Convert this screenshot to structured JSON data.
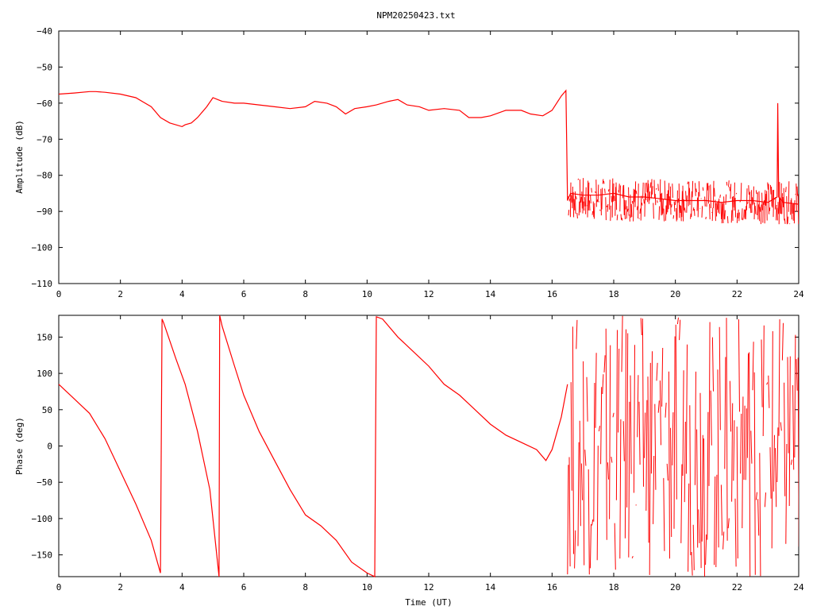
{
  "title": "NPM20250423.txt",
  "colors": {
    "series": "#ff0000",
    "axes": "#000000",
    "background": "#ffffff"
  },
  "chart_data": [
    {
      "type": "line",
      "title": "NPM20250423.txt",
      "xlabel": "",
      "ylabel": "Amplitude (dB)",
      "xlim": [
        0,
        24
      ],
      "ylim": [
        -110,
        -40
      ],
      "xticks": [
        "0",
        "2",
        "4",
        "6",
        "8",
        "10",
        "12",
        "14",
        "16",
        "18",
        "20",
        "22",
        "24"
      ],
      "yticks": [
        "-40",
        "-50",
        "-60",
        "-70",
        "-80",
        "-90",
        "-100",
        "-110"
      ],
      "grid": false,
      "series": [
        {
          "x": [
            0,
            0.5,
            1,
            1.2,
            1.5,
            2,
            2.5,
            3,
            3.3,
            3.6,
            4,
            4.1,
            4.3,
            4.5,
            4.8,
            5,
            5.3,
            5.7,
            6,
            6.5,
            7,
            7.5,
            8,
            8.3,
            8.7,
            9,
            9.3,
            9.6,
            10,
            10.3,
            10.7,
            11,
            11.3,
            11.7,
            12,
            12.5,
            13,
            13.3,
            13.7,
            14,
            14.5,
            15,
            15.3,
            15.7,
            16,
            16.3,
            16.45,
            16.5,
            16.6,
            17,
            17.5,
            18,
            18.5,
            19,
            19.5,
            20,
            20.5,
            21,
            21.5,
            22,
            22.5,
            23,
            23.3,
            23.32,
            23.35,
            23.5,
            24
          ],
          "y": [
            -57.5,
            -57.2,
            -56.8,
            -56.8,
            -57,
            -57.5,
            -58.5,
            -61,
            -64,
            -65.5,
            -66.5,
            -66,
            -65.5,
            -64,
            -61,
            -58.5,
            -59.5,
            -60,
            -60,
            -60.5,
            -61,
            -61.5,
            -61,
            -59.5,
            -60,
            -61,
            -63,
            -61.5,
            -61,
            -60.5,
            -59.5,
            -59,
            -60.5,
            -61,
            -62,
            -61.5,
            -62,
            -64,
            -64,
            -63.5,
            -62,
            -62,
            -63,
            -63.5,
            -62,
            -58,
            -56.5,
            -87,
            -85,
            -85.5,
            -85.5,
            -85,
            -86,
            -86,
            -86.5,
            -87,
            -87,
            -87,
            -87.5,
            -87,
            -87,
            -87.5,
            -86,
            -60,
            -86,
            -87.5,
            -88
          ]
        }
      ]
    },
    {
      "type": "line",
      "title": "",
      "xlabel": "Time (UT)",
      "ylabel": "Phase (deg)",
      "xlim": [
        0,
        24
      ],
      "ylim": [
        -180,
        180
      ],
      "xticks": [
        "0",
        "2",
        "4",
        "6",
        "8",
        "10",
        "12",
        "14",
        "16",
        "18",
        "20",
        "22",
        "24"
      ],
      "yticks": [
        "150",
        "100",
        "50",
        "0",
        "-50",
        "-100",
        "-150"
      ],
      "grid": false,
      "series": [
        {
          "x": [
            0,
            0.5,
            1,
            1.5,
            2,
            2.5,
            3,
            3.3,
            3.35,
            3.4,
            3.8,
            4.1,
            4.5,
            4.9,
            5.2,
            5.22,
            5.3,
            5.7,
            6,
            6.5,
            7,
            7.5,
            8,
            8.5,
            9,
            9.5,
            10,
            10.25,
            10.3,
            10.5,
            11,
            11.5,
            12,
            12.5,
            13,
            13.5,
            14,
            14.5,
            15,
            15.5,
            15.8,
            16,
            16.3,
            16.5
          ],
          "y": [
            85,
            65,
            45,
            10,
            -35,
            -80,
            -130,
            -175,
            175,
            170,
            120,
            85,
            20,
            -60,
            -180,
            180,
            165,
            110,
            70,
            20,
            -20,
            -60,
            -95,
            -110,
            -130,
            -160,
            -175,
            -180,
            178,
            175,
            150,
            130,
            110,
            85,
            70,
            50,
            30,
            15,
            5,
            -5,
            -20,
            -5,
            40,
            85
          ]
        }
      ]
    }
  ]
}
